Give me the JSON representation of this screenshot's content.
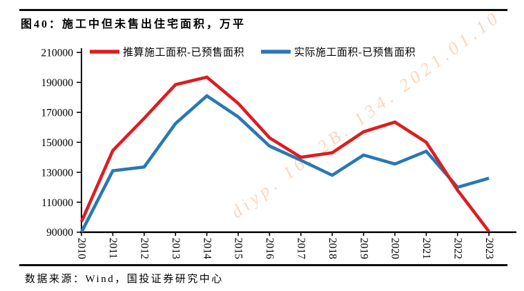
{
  "header": {
    "title": "图40：施工中但未售出住宅面积，万平"
  },
  "footer": {
    "source": "数据来源：Wind，国投证券研究中心"
  },
  "watermark": {
    "text": "diyp. 16. 2B. 134. 2021.01.10"
  },
  "colors": {
    "axis": "#000000",
    "red_series": "#dd1d21",
    "blue_series": "#2878b4"
  },
  "chart_data": {
    "type": "line",
    "title": "图40：施工中但未售出住宅面积，万平",
    "xlabel": "",
    "ylabel": "",
    "x": [
      2010,
      2011,
      2012,
      2013,
      2014,
      2015,
      2016,
      2017,
      2018,
      2019,
      2020,
      2021,
      2022,
      2023
    ],
    "ylim": [
      90000,
      210000
    ],
    "ytick_step": 20000,
    "grid": false,
    "legend_position": "top",
    "series": [
      {
        "name": "推算施工面积-已预售面积",
        "color": "#dd1d21",
        "values": [
          97000,
          144500,
          166000,
          188500,
          193500,
          176000,
          153000,
          140000,
          143000,
          157000,
          163500,
          150000,
          118000,
          90500
        ]
      },
      {
        "name": "实际施工面积-已预售面积",
        "color": "#2878b4",
        "values": [
          90000,
          131000,
          133500,
          162500,
          181000,
          167000,
          147500,
          138000,
          128000,
          141500,
          135500,
          144000,
          120000,
          126000
        ]
      }
    ]
  }
}
